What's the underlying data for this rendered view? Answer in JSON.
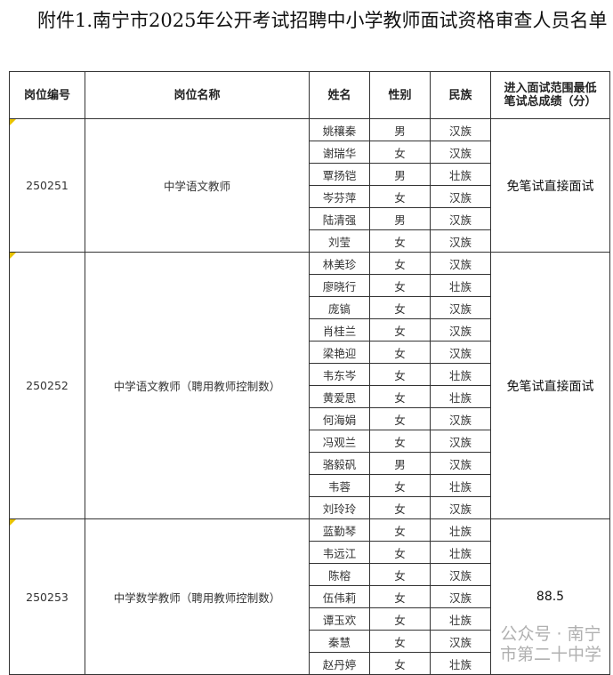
{
  "title": "附件1.南宁市2025年公开考试招聘中小学教师面试资格审查人员名单",
  "headers": [
    "岗位编号",
    "岗位名称",
    "姓名",
    "性别",
    "民族",
    "进入面试范围最低笔试总成绩（分）"
  ],
  "groups": [
    {
      "code": "250251",
      "position": "中学语文教师",
      "score": "免笔试直接面试",
      "people": [
        [
          "姚穰秦",
          "男",
          "汉族"
        ],
        [
          "谢瑞华",
          "女",
          "汉族"
        ],
        [
          "覃扬铠",
          "男",
          "壮族"
        ],
        [
          "岑芬萍",
          "女",
          "汉族"
        ],
        [
          "陆清强",
          "男",
          "汉族"
        ],
        [
          "刘莹",
          "女",
          "汉族"
        ]
      ]
    },
    {
      "code": "250252",
      "position": "中学语文教师（聘用教师控制数）",
      "score": "免笔试直接面试",
      "people": [
        [
          "林美珍",
          "女",
          "汉族"
        ],
        [
          "廖晓行",
          "女",
          "壮族"
        ],
        [
          "庞镐",
          "女",
          "汉族"
        ],
        [
          "肖桂兰",
          "女",
          "汉族"
        ],
        [
          "梁艳迎",
          "女",
          "汉族"
        ],
        [
          "韦东岑",
          "女",
          "壮族"
        ],
        [
          "黄爱思",
          "女",
          "壮族"
        ],
        [
          "何海娟",
          "女",
          "汉族"
        ],
        [
          "冯观兰",
          "女",
          "汉族"
        ],
        [
          "骆毅矾",
          "男",
          "汉族"
        ],
        [
          "韦蓉",
          "女",
          "壮族"
        ],
        [
          "刘玲玲",
          "女",
          "汉族"
        ]
      ]
    },
    {
      "code": "250253",
      "position": "中学数学教师（聘用教师控制数）",
      "score": "88.5",
      "people": [
        [
          "蓝勤琴",
          "女",
          "壮族"
        ],
        [
          "韦远江",
          "女",
          "壮族"
        ],
        [
          "陈榕",
          "女",
          "汉族"
        ],
        [
          "伍伟莉",
          "女",
          "汉族"
        ],
        [
          "谭玉欢",
          "女",
          "壮族"
        ],
        [
          "秦慧",
          "女",
          "汉族"
        ],
        [
          "赵丹婷",
          "女",
          "壮族"
        ]
      ]
    }
  ],
  "watermark": "公众号 · 南宁市第二十中学"
}
